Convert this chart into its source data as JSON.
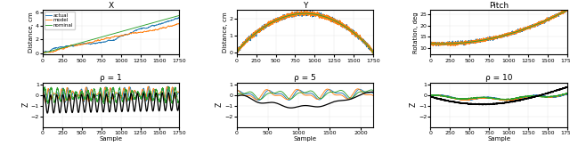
{
  "fig_width": 6.4,
  "fig_height": 1.73,
  "dpi": 100,
  "colors": {
    "actual": "#1f77b4",
    "model": "#ff7f0e",
    "nominal": "#2ca02c",
    "black": "#000000"
  },
  "top_titles": [
    "X",
    "Y",
    "Pitch"
  ],
  "top_ylabels": [
    "Distance, cm",
    "Distance, cm",
    "Rotation, deg"
  ],
  "bot_titles": [
    "ρ = 1",
    "ρ = 5",
    "ρ = 10"
  ],
  "bot_ylabel": "Z",
  "bot_xlabel": "Sample",
  "legend_labels": [
    "actual",
    "model",
    "nominal"
  ]
}
